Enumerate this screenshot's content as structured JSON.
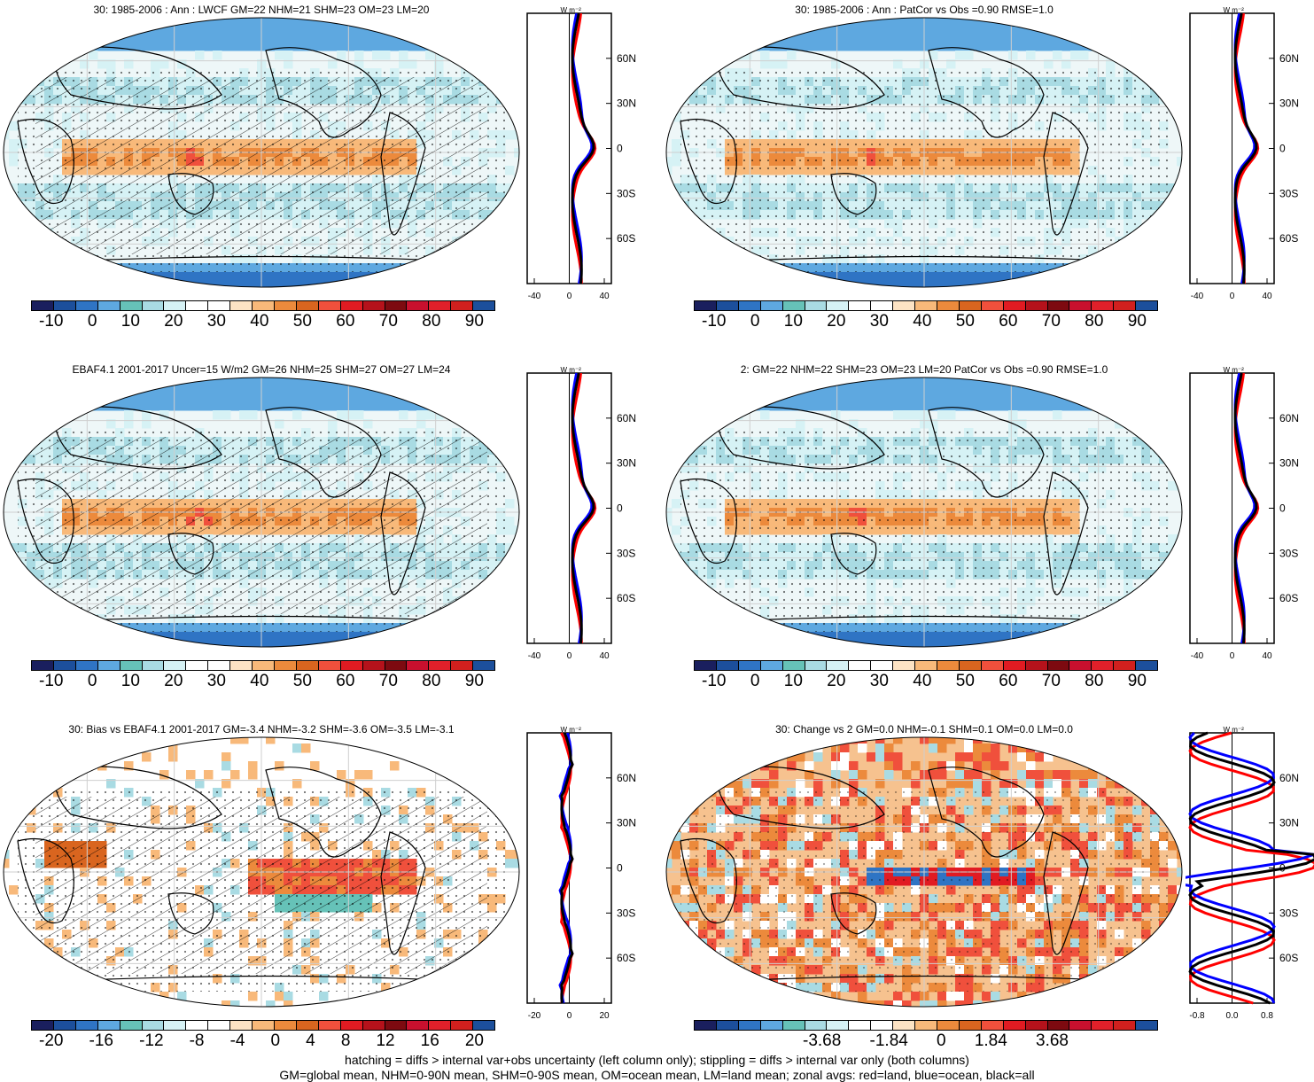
{
  "panels": [
    {
      "title": "30: 1985-2006 : Ann : LWCF GM=22 NHM=21 SHM=23 OM=23 LM=20",
      "colorbar": [
        "-10",
        "0",
        "10",
        "20",
        "30",
        "40",
        "50",
        "60",
        "70",
        "80",
        "90"
      ],
      "zonal_xticks": [
        "-40",
        "0",
        "40"
      ],
      "kind": "field",
      "hatch": true
    },
    {
      "title": "30: 1985-2006 : Ann : PatCor vs Obs =0.90 RMSE=1.0",
      "colorbar": [
        "-10",
        "0",
        "10",
        "20",
        "30",
        "40",
        "50",
        "60",
        "70",
        "80",
        "90"
      ],
      "zonal_xticks": [
        "-40",
        "0",
        "40"
      ],
      "kind": "field",
      "hatch": false
    },
    {
      "title": "EBAF4.1 2001-2017 Uncer=15 W/m2 GM=26 NHM=25 SHM=27 OM=27 LM=24",
      "colorbar": [
        "-10",
        "0",
        "10",
        "20",
        "30",
        "40",
        "50",
        "60",
        "70",
        "80",
        "90"
      ],
      "zonal_xticks": [
        "-40",
        "0",
        "40"
      ],
      "kind": "field",
      "hatch": true
    },
    {
      "title": "2: GM=22 NHM=22 SHM=23 OM=23 LM=20 PatCor vs Obs =0.90 RMSE=1.0",
      "colorbar": [
        "-10",
        "0",
        "10",
        "20",
        "30",
        "40",
        "50",
        "60",
        "70",
        "80",
        "90"
      ],
      "zonal_xticks": [
        "-40",
        "0",
        "40"
      ],
      "kind": "field",
      "hatch": false
    },
    {
      "title": "30: Bias vs EBAF4.1 2001-2017 GM=-3.4 NHM=-3.2 SHM=-3.6 OM=-3.5 LM=-3.1",
      "colorbar": [
        "-20",
        "-16",
        "-12",
        "-8",
        "-4",
        "0",
        "4",
        "8",
        "12",
        "16",
        "20"
      ],
      "zonal_xticks": [
        "-20",
        "0",
        "20"
      ],
      "kind": "bias",
      "hatch": true
    },
    {
      "title": "30: Change vs 2 GM=0.0 NHM=-0.1 SHM=0.1 OM=0.0 LM=0.0",
      "colorbar": [
        "-3.68",
        "-1.84",
        "0",
        "1.84",
        "3.68"
      ],
      "zonal_xticks": [
        "-0.8",
        "0.0",
        "0.8"
      ],
      "kind": "change",
      "hatch": false
    }
  ],
  "zonal_unit": "W m⁻²",
  "lat_labels": [
    "60N",
    "30N",
    "0",
    "30S",
    "60S"
  ],
  "colors": {
    "palette": [
      "#1a1f5e",
      "#1c4f9c",
      "#2f74c4",
      "#5ea8e0",
      "#66c2b8",
      "#a9dbe3",
      "#d6f2f5",
      "#ffffff",
      "#ffffff",
      "#fde3c4",
      "#f8b97a",
      "#ec8a3c",
      "#d9651f",
      "#f0503c",
      "#e11b22",
      "#b5121b",
      "#7d0a10",
      "#c8102e",
      "#e0202a",
      "#d1201e",
      "#1c4f9c"
    ],
    "land": "#ff0000",
    "ocean": "#0000ff",
    "all": "#000000"
  },
  "footer": {
    "line1": "hatching = diffs > internal var+obs uncertainty (left column only); stippling = diffs > internal var only (both columns)",
    "line2": "GM=global mean, NHM=0-90N mean, SHM=0-90S mean, OM=ocean mean, LM=land mean; zonal avgs: red=land, blue=ocean, black=all"
  }
}
